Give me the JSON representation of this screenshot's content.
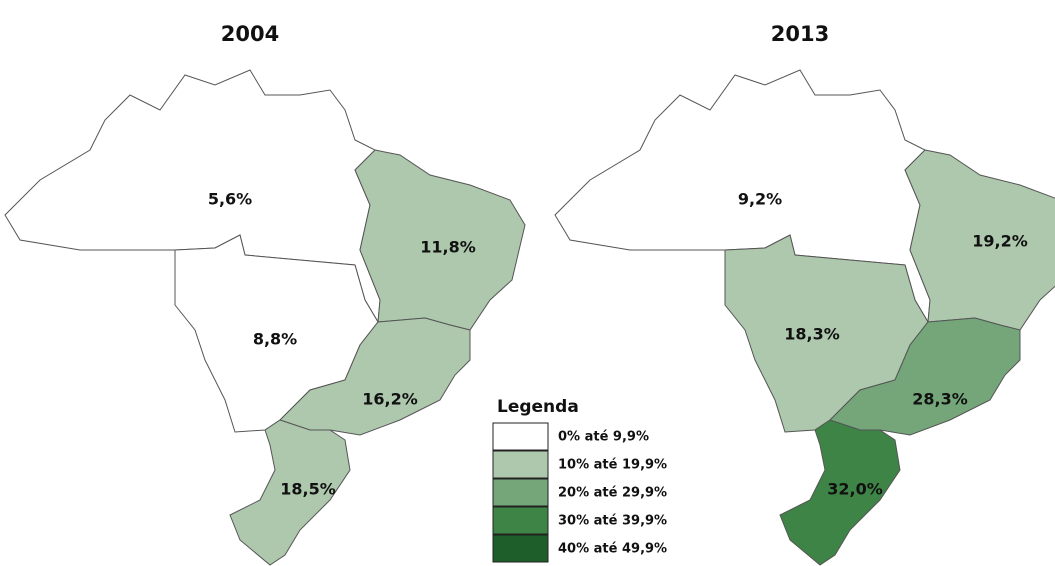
{
  "maps": [
    {
      "title": "2004",
      "regions": [
        {
          "label": "5,6%",
          "color": "#ffffff"
        },
        {
          "label": "11,8%",
          "color": "#adc8ad"
        },
        {
          "label": "8,8%",
          "color": "#ffffff"
        },
        {
          "label": "16,2%",
          "color": "#adc8ad"
        },
        {
          "label": "18,5%",
          "color": "#adc8ad"
        }
      ]
    },
    {
      "title": "2013",
      "regions": [
        {
          "label": "9,2%",
          "color": "#ffffff"
        },
        {
          "label": "19,2%",
          "color": "#adc8ad"
        },
        {
          "label": "18,3%",
          "color": "#adc8ad"
        },
        {
          "label": "28,3%",
          "color": "#74a67a"
        },
        {
          "label": "32,0%",
          "color": "#3e8446"
        }
      ]
    }
  ],
  "legend": {
    "title": "Legenda",
    "items": [
      {
        "label": "0% até 9,9%",
        "color": "#ffffff"
      },
      {
        "label": "10% até 19,9%",
        "color": "#adc8ad"
      },
      {
        "label": "20% até 29,9%",
        "color": "#74a67a"
      },
      {
        "label": "30% até 39,9%",
        "color": "#3e8446"
      },
      {
        "label": "40% até 49,9%",
        "color": "#1d5e2a"
      }
    ]
  }
}
